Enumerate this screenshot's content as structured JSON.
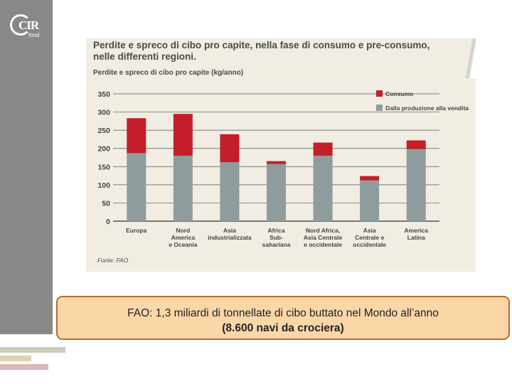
{
  "logo": {
    "text": "CIR",
    "subtext": "food"
  },
  "chart_data": {
    "type": "bar",
    "stacked": true,
    "title": "Perdite e spreco di cibo pro capite, nella fase di consumo e pre-consumo, nelle differenti regioni.",
    "subtitle": "Perdite e spreco di cibo pro capite (kg/anno)",
    "categories": [
      [
        "Europa"
      ],
      [
        "Nord",
        "America",
        "e Oceania"
      ],
      [
        "Asia",
        "industrializzata"
      ],
      [
        "Africa",
        "Sub-",
        "sahariana"
      ],
      [
        "Nord Africa,",
        "Asia Centrale",
        "e occidentale"
      ],
      [
        "Asia",
        "Centrale e",
        "occidentale"
      ],
      [
        "America",
        "Latina"
      ]
    ],
    "series": [
      {
        "name": "Dalla produzione alla vendita",
        "color": "#8e9c9d",
        "values": [
          187,
          180,
          162,
          157,
          180,
          112,
          198
        ]
      },
      {
        "name": "Consumo",
        "color": "#c41e2a",
        "values": [
          96,
          115,
          77,
          8,
          36,
          12,
          24
        ]
      }
    ],
    "ylim": [
      0,
      350
    ],
    "yticks": [
      0,
      50,
      100,
      150,
      200,
      250,
      300,
      350
    ],
    "grid": true,
    "legend": "top-right",
    "source": "Fonte: FAO"
  },
  "caption": {
    "line1": "FAO: 1,3 miliardi di tonnellate di cibo buttato nel Mondo all’anno",
    "line2": "(8.600 navi da crociera)"
  }
}
